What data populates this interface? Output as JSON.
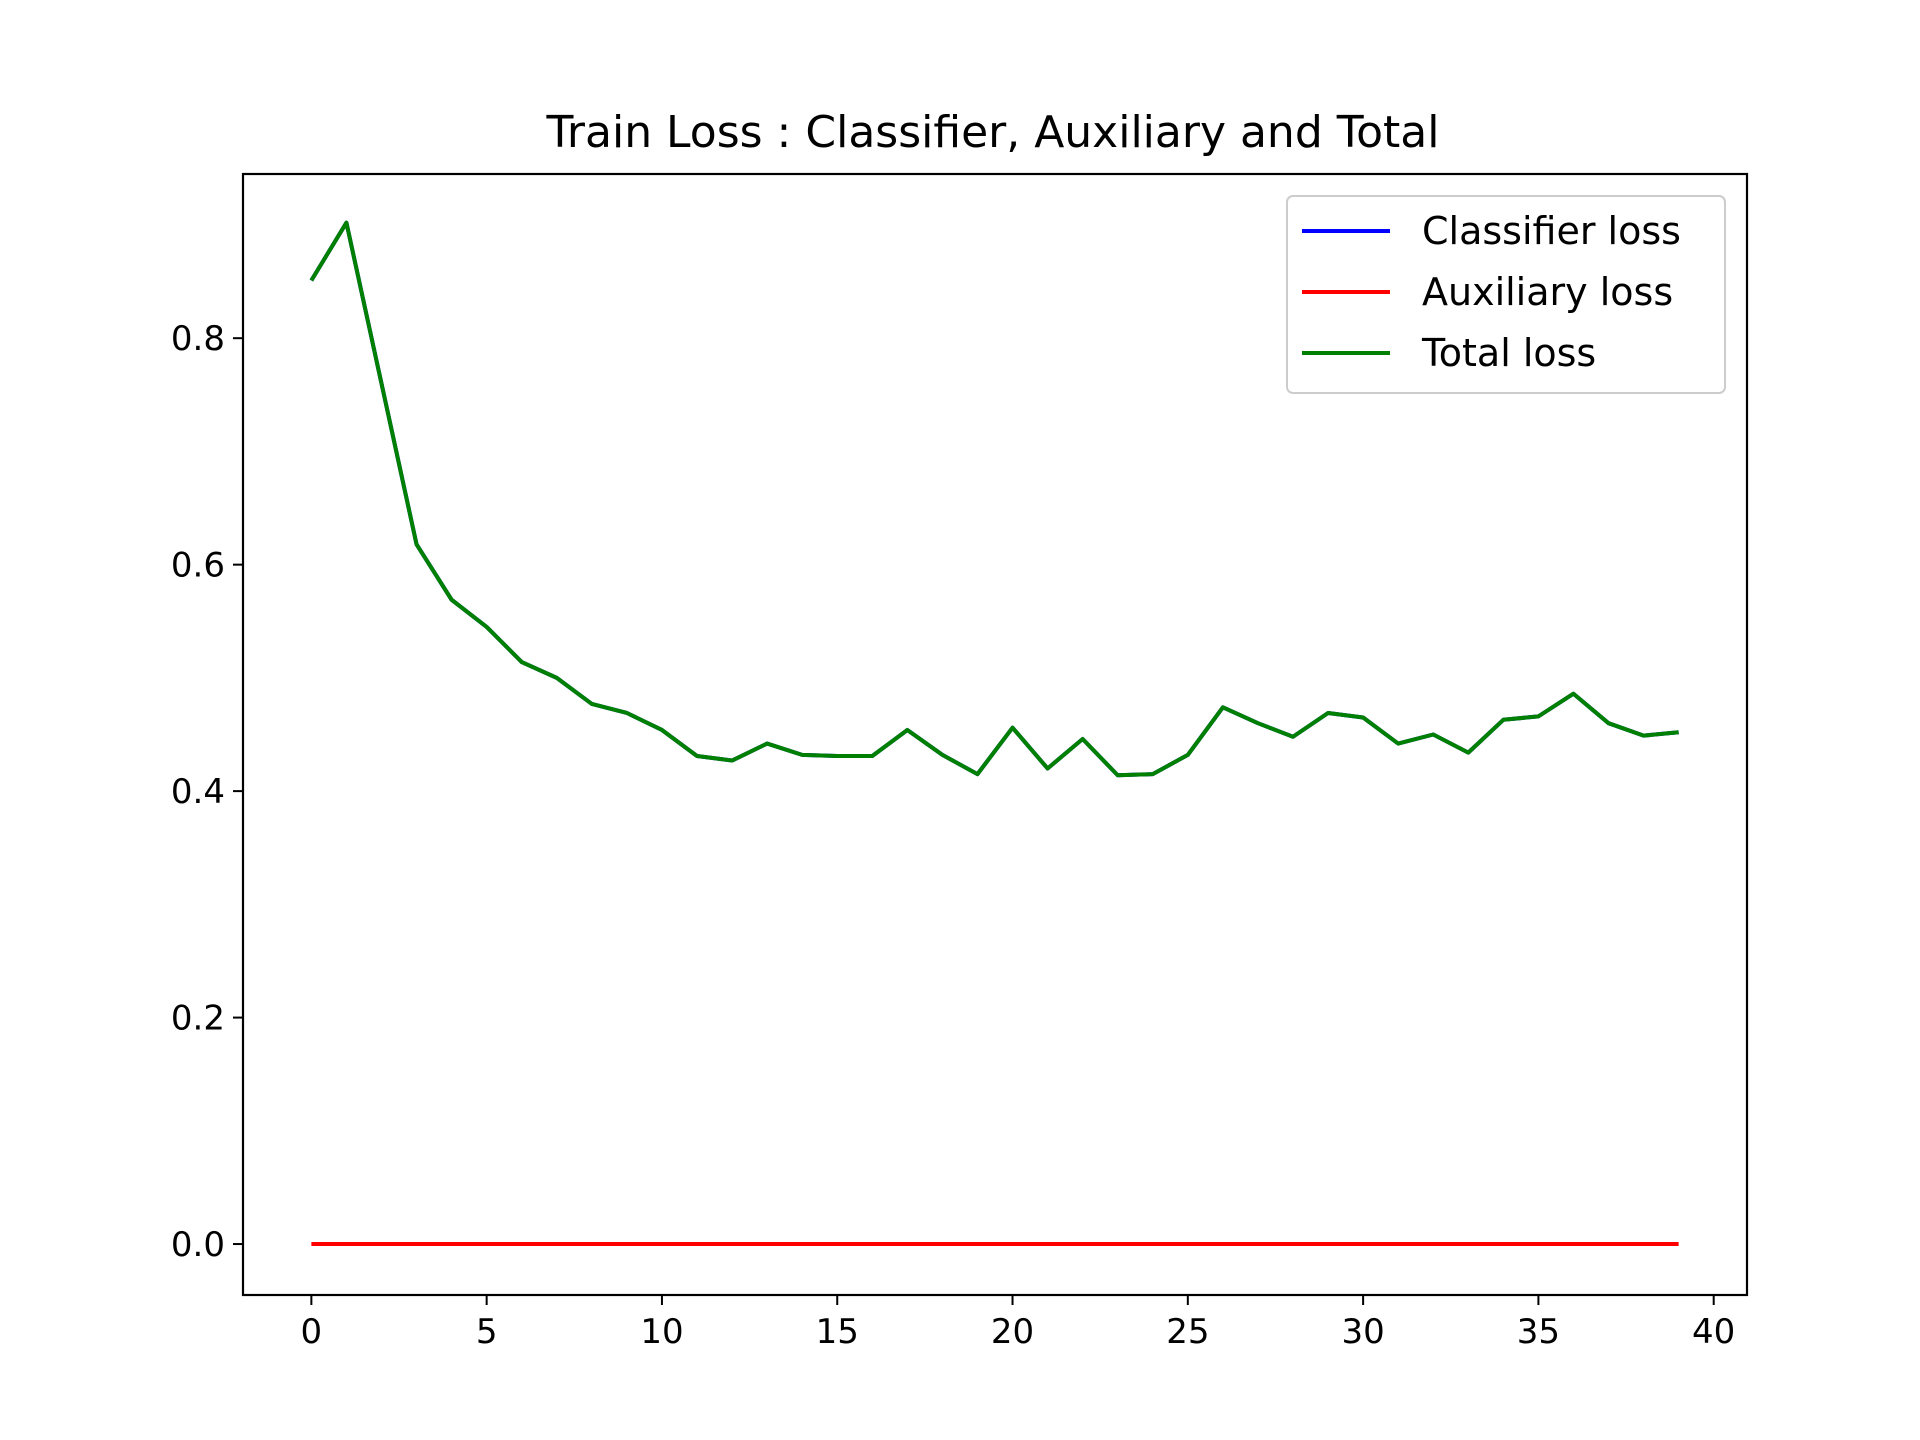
{
  "chart_data": {
    "type": "line",
    "title": "Train Loss : Classifier, Auxiliary and Total",
    "xlabel": "",
    "ylabel": "",
    "xlim": [
      -1.95,
      40.95
    ],
    "ylim": [
      -0.045,
      0.945
    ],
    "xticks": [
      0,
      5,
      10,
      15,
      20,
      25,
      30,
      35,
      40
    ],
    "xtick_labels": [
      "0",
      "5",
      "10",
      "15",
      "20",
      "25",
      "30",
      "35",
      "40"
    ],
    "yticks": [
      0.0,
      0.2,
      0.4,
      0.6,
      0.8
    ],
    "ytick_labels": [
      "0.0",
      "0.2",
      "0.4",
      "0.6",
      "0.8"
    ],
    "grid": false,
    "legend_position": "upper right",
    "x": [
      0,
      1,
      2,
      3,
      4,
      5,
      6,
      7,
      8,
      9,
      10,
      11,
      12,
      13,
      14,
      15,
      16,
      17,
      18,
      19,
      20,
      21,
      22,
      23,
      24,
      25,
      26,
      27,
      28,
      29,
      30,
      31,
      32,
      33,
      34,
      35,
      36,
      37,
      38,
      39
    ],
    "series": [
      {
        "name": "Classifier loss",
        "color": "#0000ff",
        "values": [
          0.851,
          0.902,
          0.76,
          0.618,
          0.569,
          0.545,
          0.514,
          0.5,
          0.477,
          0.469,
          0.454,
          0.431,
          0.427,
          0.442,
          0.432,
          0.431,
          0.431,
          0.454,
          0.432,
          0.415,
          0.456,
          0.42,
          0.446,
          0.414,
          0.415,
          0.432,
          0.474,
          0.46,
          0.448,
          0.469,
          0.465,
          0.442,
          0.45,
          0.434,
          0.463,
          0.466,
          0.486,
          0.46,
          0.449,
          0.452
        ]
      },
      {
        "name": "Auxiliary loss",
        "color": "#ff0000",
        "values": [
          0.0,
          0.0,
          0.0,
          0.0,
          0.0,
          0.0,
          0.0,
          0.0,
          0.0,
          0.0,
          0.0,
          0.0,
          0.0,
          0.0,
          0.0,
          0.0,
          0.0,
          0.0,
          0.0,
          0.0,
          0.0,
          0.0,
          0.0,
          0.0,
          0.0,
          0.0,
          0.0,
          0.0,
          0.0,
          0.0,
          0.0,
          0.0,
          0.0,
          0.0,
          0.0,
          0.0,
          0.0,
          0.0,
          0.0,
          0.0
        ]
      },
      {
        "name": "Total loss",
        "color": "#008000",
        "values": [
          0.851,
          0.902,
          0.76,
          0.618,
          0.569,
          0.545,
          0.514,
          0.5,
          0.477,
          0.469,
          0.454,
          0.431,
          0.427,
          0.442,
          0.432,
          0.431,
          0.431,
          0.454,
          0.432,
          0.415,
          0.456,
          0.42,
          0.446,
          0.414,
          0.415,
          0.432,
          0.474,
          0.46,
          0.448,
          0.469,
          0.465,
          0.442,
          0.45,
          0.434,
          0.463,
          0.466,
          0.486,
          0.46,
          0.449,
          0.452
        ]
      }
    ]
  }
}
